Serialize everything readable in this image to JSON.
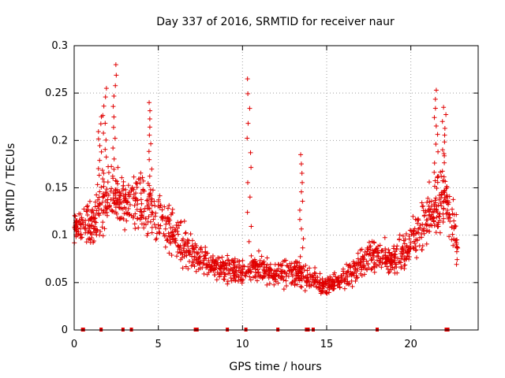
{
  "chart_data": {
    "type": "scatter",
    "title": "Day 337 of 2016, SRMTID for receiver naur",
    "xlabel": "GPS time / hours",
    "ylabel": "SRMTID / TECUs",
    "xlim": [
      0,
      24
    ],
    "ylim": [
      0,
      0.3
    ],
    "x_ticks": [
      0,
      5,
      10,
      15,
      20
    ],
    "x_tick_labels": [
      "0",
      "5",
      "10",
      "15",
      "20"
    ],
    "y_ticks": [
      0,
      0.05,
      0.1,
      0.15,
      0.2,
      0.25,
      0.3
    ],
    "y_tick_labels": [
      "0",
      "0.05",
      "0.1",
      "0.15",
      "0.2",
      "0.25",
      "0.3"
    ],
    "grid": true,
    "marker": "plus",
    "color": "#e00000",
    "series": [
      {
        "name": "SRMTID",
        "profile": [
          {
            "x": 0.0,
            "y": 0.11,
            "spread": 0.02
          },
          {
            "x": 1.0,
            "y": 0.11,
            "spread": 0.035
          },
          {
            "x": 2.0,
            "y": 0.14,
            "spread": 0.05
          },
          {
            "x": 3.0,
            "y": 0.13,
            "spread": 0.04
          },
          {
            "x": 4.0,
            "y": 0.135,
            "spread": 0.045
          },
          {
            "x": 5.0,
            "y": 0.12,
            "spread": 0.04
          },
          {
            "x": 6.0,
            "y": 0.1,
            "spread": 0.035
          },
          {
            "x": 7.0,
            "y": 0.08,
            "spread": 0.025
          },
          {
            "x": 8.0,
            "y": 0.07,
            "spread": 0.02
          },
          {
            "x": 9.0,
            "y": 0.065,
            "spread": 0.02
          },
          {
            "x": 10.0,
            "y": 0.06,
            "spread": 0.022
          },
          {
            "x": 11.0,
            "y": 0.065,
            "spread": 0.02
          },
          {
            "x": 12.0,
            "y": 0.06,
            "spread": 0.02
          },
          {
            "x": 13.0,
            "y": 0.06,
            "spread": 0.02
          },
          {
            "x": 14.0,
            "y": 0.055,
            "spread": 0.018
          },
          {
            "x": 15.0,
            "y": 0.045,
            "spread": 0.015
          },
          {
            "x": 16.0,
            "y": 0.055,
            "spread": 0.018
          },
          {
            "x": 17.0,
            "y": 0.07,
            "spread": 0.02
          },
          {
            "x": 18.0,
            "y": 0.08,
            "spread": 0.022
          },
          {
            "x": 19.0,
            "y": 0.075,
            "spread": 0.025
          },
          {
            "x": 20.0,
            "y": 0.09,
            "spread": 0.03
          },
          {
            "x": 21.0,
            "y": 0.12,
            "spread": 0.04
          },
          {
            "x": 22.0,
            "y": 0.14,
            "spread": 0.05
          },
          {
            "x": 22.8,
            "y": 0.09,
            "spread": 0.03
          }
        ],
        "spikes": [
          {
            "x": 1.5,
            "peak": 0.225
          },
          {
            "x": 1.8,
            "peak": 0.255
          },
          {
            "x": 2.4,
            "peak": 0.28
          },
          {
            "x": 4.5,
            "peak": 0.24
          },
          {
            "x": 10.4,
            "peak": 0.265
          },
          {
            "x": 13.5,
            "peak": 0.185
          },
          {
            "x": 21.5,
            "peak": 0.253
          },
          {
            "x": 22.0,
            "peak": 0.235
          }
        ],
        "points_count": 1500,
        "x_range": [
          0.0,
          22.8
        ]
      }
    ],
    "zero_markers_x": [
      0.5,
      0.55,
      1.6,
      2.9,
      3.4,
      7.2,
      7.3,
      9.1,
      10.2,
      12.1,
      13.8,
      13.9,
      14.2,
      18.0,
      22.1,
      22.2
    ]
  }
}
